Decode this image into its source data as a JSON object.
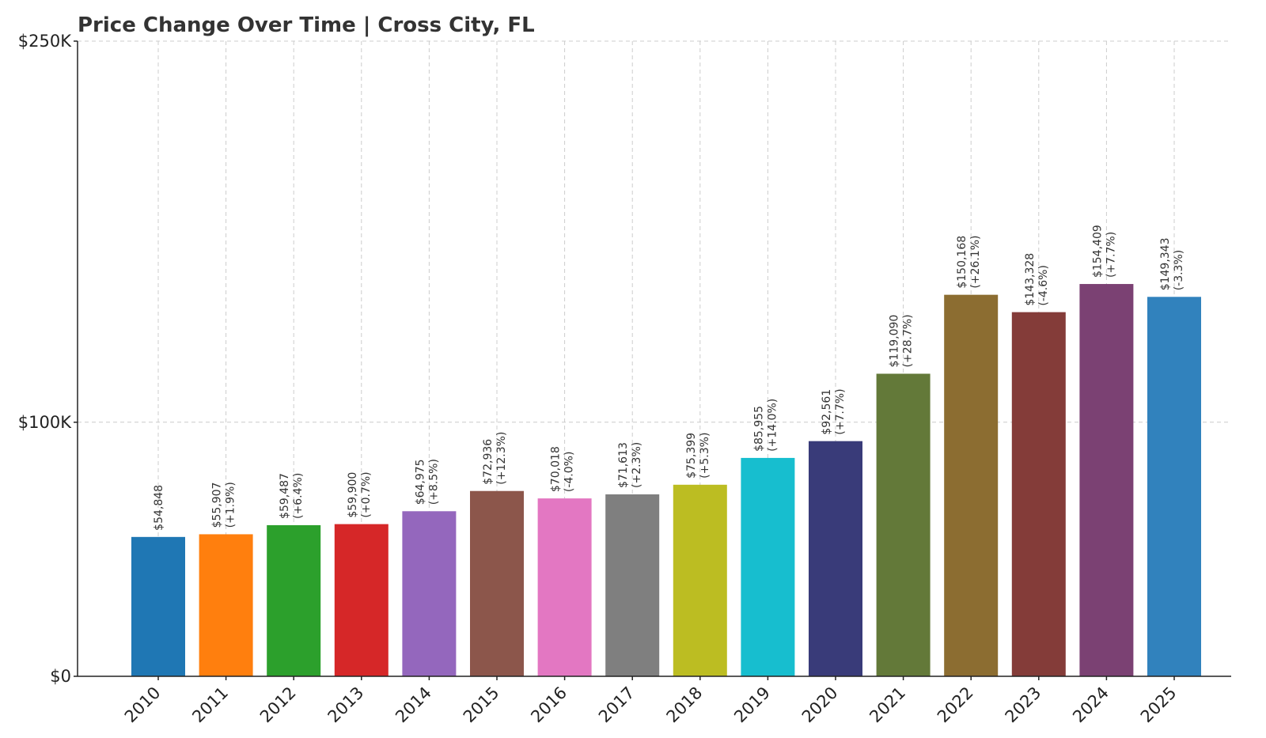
{
  "chart_data": {
    "type": "bar",
    "title": "Price Change Over Time | Cross City, FL",
    "xlabel": "",
    "ylabel": "",
    "ylim": [
      0,
      250000
    ],
    "y_ticks": [
      {
        "value": 0,
        "label": "$0"
      },
      {
        "value": 100000,
        "label": "$100K"
      },
      {
        "value": 250000,
        "label": "$250K"
      }
    ],
    "grid": true,
    "categories": [
      "2010",
      "2011",
      "2012",
      "2013",
      "2014",
      "2015",
      "2016",
      "2017",
      "2018",
      "2019",
      "2020",
      "2021",
      "2022",
      "2023",
      "2024",
      "2025"
    ],
    "values": [
      54848,
      55907,
      59487,
      59900,
      64975,
      72936,
      70018,
      71613,
      75399,
      85955,
      92561,
      119090,
      150168,
      143328,
      154409,
      149343
    ],
    "value_labels": [
      "$54,848",
      "$55,907",
      "$59,487",
      "$59,900",
      "$64,975",
      "$72,936",
      "$70,018",
      "$71,613",
      "$75,399",
      "$85,955",
      "$92,561",
      "$119,090",
      "$150,168",
      "$143,328",
      "$154,409",
      "$149,343"
    ],
    "change_labels": [
      "",
      "(+1.9%)",
      "(+6.4%)",
      "(+0.7%)",
      "(+8.5%)",
      "(+12.3%)",
      "(-4.0%)",
      "(+2.3%)",
      "(+5.3%)",
      "(+14.0%)",
      "(+7.7%)",
      "(+28.7%)",
      "(+26.1%)",
      "(-4.6%)",
      "(+7.7%)",
      "(-3.3%)"
    ],
    "colors": [
      "#1f77b4",
      "#ff7f0e",
      "#2ca02c",
      "#d62728",
      "#9467bd",
      "#8c564b",
      "#e377c2",
      "#7f7f7f",
      "#bcbd22",
      "#17becf",
      "#393b79",
      "#637939",
      "#8c6d31",
      "#843c39",
      "#7b4173",
      "#3182bd"
    ]
  }
}
